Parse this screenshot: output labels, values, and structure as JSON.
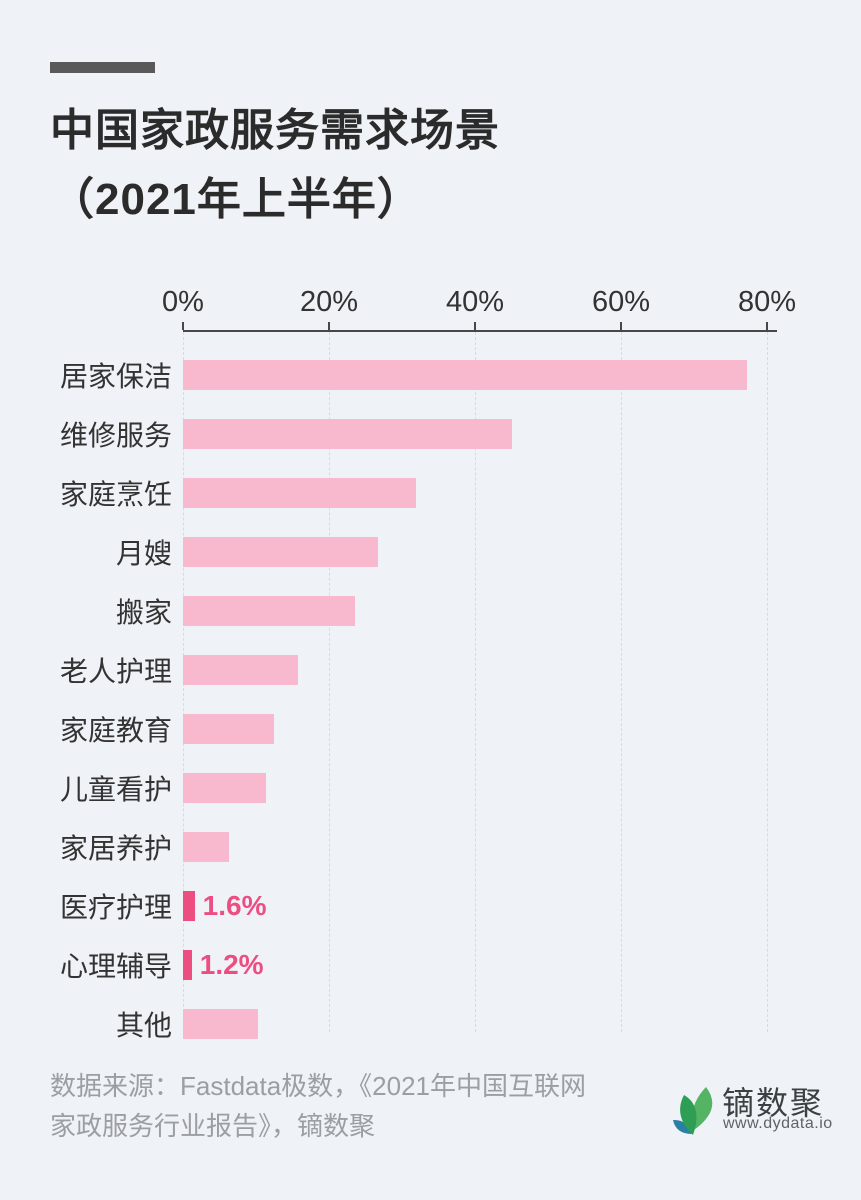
{
  "colors": {
    "bg": "#eff2f6",
    "accent": "#595959",
    "title": "#2b2b2b",
    "axis": "#474747",
    "grid": "#d7dbe1",
    "bar": "#f8b9ce",
    "hl": "#ec4e81",
    "label": "#333333",
    "muted": "#9b9ea3",
    "logo-name": "#3d4043",
    "logo-url": "#5f6368"
  },
  "header": {
    "title_line1": "中国家政服务需求场景",
    "title_line2": "（2021年上半年）"
  },
  "chart_data": {
    "type": "bar",
    "orientation": "horizontal",
    "title": "中国家政服务需求场景（2021年上半年）",
    "xlabel": "",
    "ylabel": "",
    "xlim": [
      0,
      80
    ],
    "axis_ticks": [
      "0%",
      "20%",
      "40%",
      "60%",
      "80%"
    ],
    "grid": "dashed-vertical",
    "legend": "none",
    "categories": [
      "居家保洁",
      "维修服务",
      "家庭烹饪",
      "月嫂",
      "搬家",
      "老人护理",
      "家庭教育",
      "儿童看护",
      "家居养护",
      "医疗护理",
      "心理辅导",
      "其他"
    ],
    "values": [
      77.2,
      45.0,
      31.9,
      26.7,
      23.5,
      15.8,
      12.4,
      11.4,
      6.3,
      1.6,
      1.2,
      10.3
    ],
    "data_labels": [
      "",
      "",
      "",
      "",
      "",
      "",
      "",
      "",
      "",
      "1.6%",
      "1.2%",
      ""
    ],
    "highlighted_indices": [
      9,
      10
    ],
    "bar_color": "#f8b9ce",
    "highlight_color": "#ec4e81"
  },
  "footer": {
    "source_line1": "数据来源：Fastdata极数，《2021年中国互联网",
    "source_line2": "家政服务行业报告》，镝数聚",
    "logo": {
      "name": "镝数聚",
      "url": "www.dydata.io",
      "icon": "leaf-icon",
      "leaf_colors": [
        "#55b364",
        "#2b80a2",
        "#2f9e55"
      ]
    }
  }
}
